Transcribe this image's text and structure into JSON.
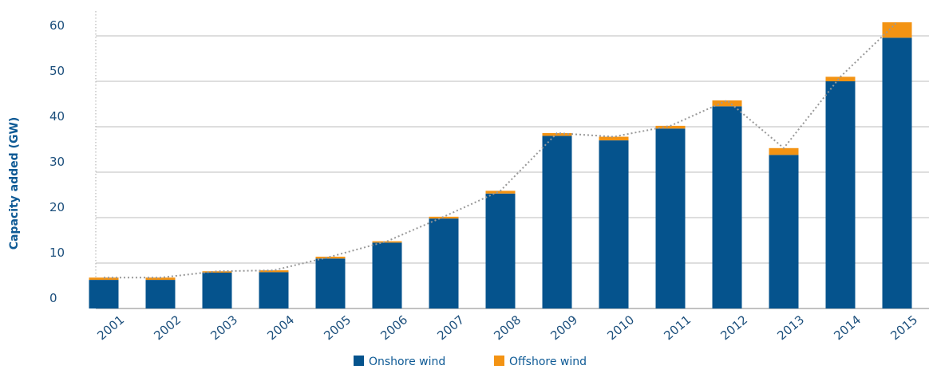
{
  "chart_data": {
    "type": "bar",
    "stacked": true,
    "title": "",
    "xlabel": "",
    "ylabel": "Capacity added (GW)",
    "ylim": [
      0,
      62
    ],
    "yticks": [
      0,
      10,
      20,
      30,
      40,
      50,
      60
    ],
    "grid": true,
    "legend_position": "bottom-center",
    "categories": [
      "2001",
      "2002",
      "2003",
      "2004",
      "2005",
      "2006",
      "2007",
      "2008",
      "2009",
      "2010",
      "2011",
      "2012",
      "2013",
      "2014",
      "2015"
    ],
    "series": [
      {
        "name": "Onshore wind",
        "color": "#05538d",
        "values": [
          6.3,
          6.3,
          7.9,
          8.0,
          11.0,
          14.5,
          19.8,
          25.3,
          38.0,
          37.0,
          39.6,
          44.5,
          33.8,
          50.0,
          59.6
        ]
      },
      {
        "name": "Offshore wind",
        "color": "#f39313",
        "values": [
          0.5,
          0.5,
          0.3,
          0.4,
          0.4,
          0.3,
          0.4,
          0.6,
          0.6,
          0.8,
          0.6,
          1.3,
          1.5,
          1.0,
          3.4
        ]
      }
    ],
    "total_line": {
      "style": "dotted",
      "color": "#999999"
    }
  }
}
